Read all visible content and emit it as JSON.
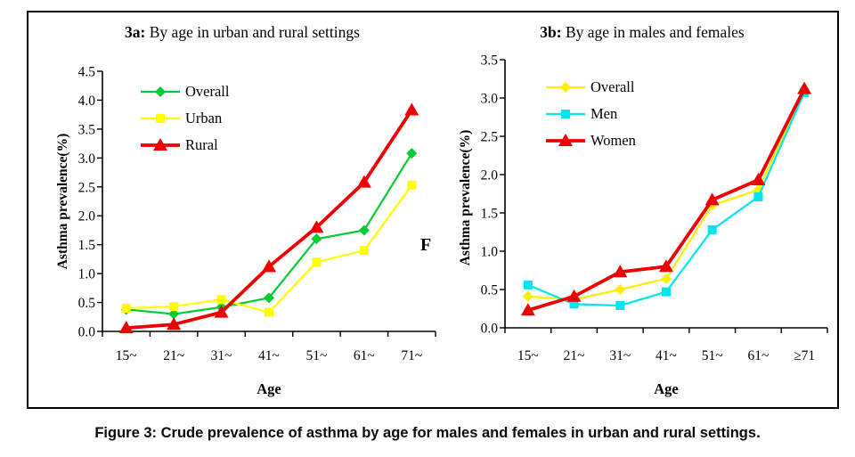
{
  "figure": {
    "caption_prefix": "Figure 3:",
    "caption_body": " Crude prevalence of asthma by age for males and females in urban and rural settings.",
    "stray_text": "F"
  },
  "colors": {
    "axis": "#000000",
    "overall_green": "#00cc33",
    "urban_yellow": "#ffff00",
    "rural_red": "#ee0000",
    "men_cyan": "#00e5ee",
    "women_red": "#ee0000",
    "overall_b_yellow": "#ffee00"
  },
  "chart_data": [
    {
      "id": "3a",
      "type": "line",
      "title_prefix": "3a:",
      "title_text": " By age in urban and rural settings",
      "xlabel": "Age",
      "ylabel": "Asthma prevalence(%)",
      "categories": [
        "15~",
        "21~",
        "31~",
        "41~",
        "51~",
        "61~",
        "71~"
      ],
      "yticks": [
        "4.5",
        "4.0",
        "3.5",
        "3.0",
        "2.5",
        "2.0",
        "1.5",
        "1.0",
        "0.5",
        "0.0"
      ],
      "ylim": [
        0,
        4.5
      ],
      "ytick_step": 0.5,
      "grid": false,
      "legend_position": "top-left-inside",
      "series": [
        {
          "name": "Overall",
          "color": "#00cc33",
          "marker": "diamond",
          "line_width": 2.2,
          "values": [
            0.38,
            0.3,
            0.42,
            0.58,
            1.6,
            1.75,
            3.08
          ]
        },
        {
          "name": "Urban",
          "color": "#ffff00",
          "marker": "square",
          "line_width": 2.2,
          "values": [
            0.4,
            0.43,
            0.55,
            0.33,
            1.2,
            1.4,
            2.53
          ]
        },
        {
          "name": "Rural",
          "color": "#ee0000",
          "marker": "triangle",
          "line_width": 3.8,
          "values": [
            0.06,
            0.12,
            0.33,
            1.12,
            1.8,
            2.58,
            3.83
          ]
        }
      ]
    },
    {
      "id": "3b",
      "type": "line",
      "title_prefix": "3b:",
      "title_text": " By age in males and females",
      "xlabel": "Age",
      "ylabel": "Asthma prevalence(%)",
      "categories": [
        "15~",
        "21~",
        "31~",
        "41~",
        "51~",
        "61~",
        "≥71"
      ],
      "yticks": [
        "3.5",
        "3.0",
        "2.5",
        "2.0",
        "1.5",
        "1.0",
        "0.5",
        "0.0"
      ],
      "ylim": [
        0,
        3.5
      ],
      "ytick_step": 0.5,
      "grid": false,
      "legend_position": "top-left-inside",
      "series": [
        {
          "name": "Overall",
          "color": "#ffee00",
          "marker": "diamond",
          "line_width": 2.2,
          "values": [
            0.41,
            0.37,
            0.5,
            0.64,
            1.6,
            1.8,
            3.1
          ]
        },
        {
          "name": "Men",
          "color": "#00e5ee",
          "marker": "square",
          "line_width": 2.2,
          "values": [
            0.56,
            0.31,
            0.29,
            0.47,
            1.28,
            1.71,
            3.07
          ]
        },
        {
          "name": "Women",
          "color": "#ee0000",
          "marker": "triangle",
          "line_width": 3.8,
          "values": [
            0.23,
            0.41,
            0.73,
            0.8,
            1.67,
            1.93,
            3.12
          ]
        }
      ]
    }
  ]
}
